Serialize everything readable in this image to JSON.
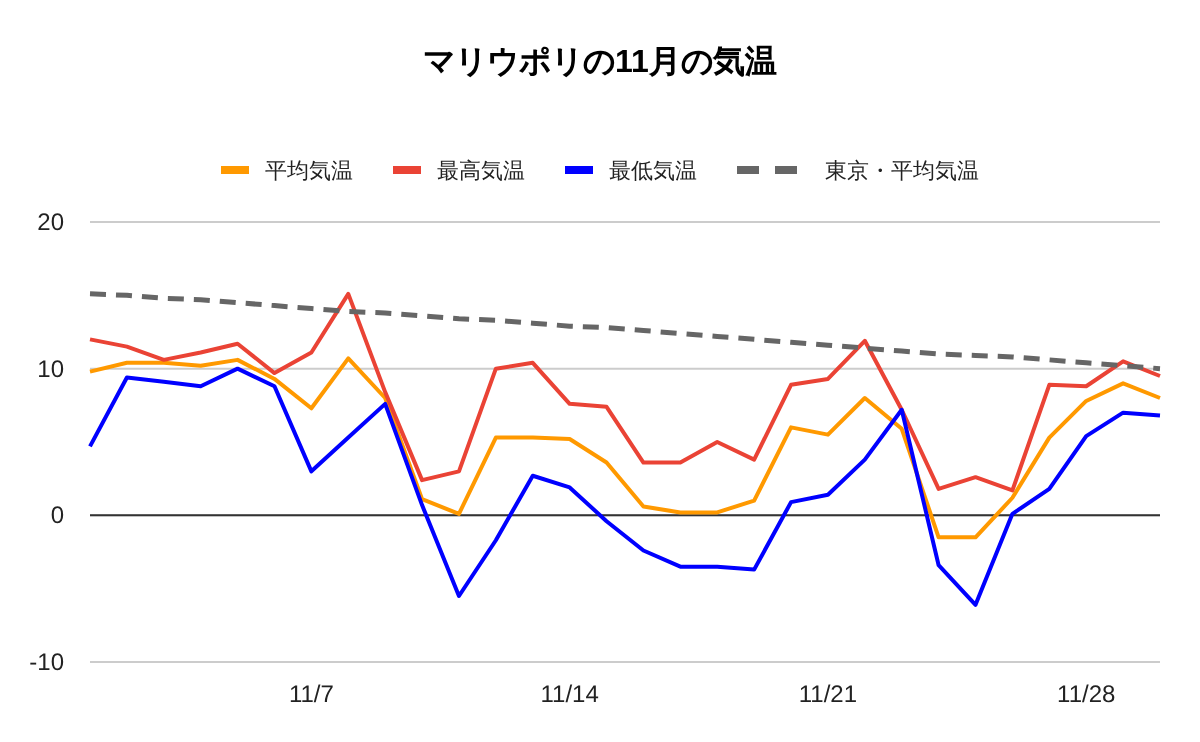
{
  "chart_data": {
    "type": "line",
    "title": "マリウポリの11月の気温",
    "categories": [
      null,
      null,
      null,
      null,
      null,
      null,
      "11/7",
      null,
      null,
      null,
      null,
      null,
      null,
      "11/14",
      null,
      null,
      null,
      null,
      null,
      null,
      "11/21",
      null,
      null,
      null,
      null,
      null,
      null,
      "11/28",
      null,
      null
    ],
    "series": [
      {
        "name": "平均気温",
        "color": "#ff9900",
        "values": [
          9.8,
          10.4,
          10.4,
          10.2,
          10.6,
          9.3,
          7.3,
          10.7,
          8.0,
          1.1,
          0.1,
          5.3,
          5.3,
          5.2,
          3.6,
          0.6,
          0.2,
          0.2,
          1.0,
          6.0,
          5.5,
          8.0,
          5.9,
          -1.5,
          -1.5,
          1.2,
          5.3,
          7.8,
          9.0,
          8.0
        ]
      },
      {
        "name": "最高気温",
        "color": "#ea4335",
        "values": [
          12.0,
          11.5,
          10.6,
          11.1,
          11.7,
          9.7,
          11.1,
          15.1,
          8.4,
          2.4,
          3.0,
          10.0,
          10.4,
          7.6,
          7.4,
          3.6,
          3.6,
          5.0,
          3.8,
          8.9,
          9.3,
          11.9,
          7.2,
          1.8,
          2.6,
          1.7,
          8.9,
          8.8,
          10.5,
          9.5
        ]
      },
      {
        "name": "最低気温",
        "color": "#0000ff",
        "values": [
          4.7,
          9.4,
          9.1,
          8.8,
          10.0,
          8.8,
          3.0,
          5.3,
          7.6,
          0.7,
          -5.5,
          -1.7,
          2.7,
          1.9,
          -0.4,
          -2.4,
          -3.5,
          -3.5,
          -3.7,
          0.9,
          1.4,
          3.8,
          7.2,
          -3.4,
          -6.1,
          0.1,
          1.8,
          5.4,
          7.0,
          6.8
        ]
      },
      {
        "name": "東京・平均気温",
        "color": "#666666",
        "line_style": "dashed",
        "values": [
          15.1,
          15.0,
          14.8,
          14.7,
          14.5,
          14.3,
          14.1,
          13.9,
          13.8,
          13.6,
          13.4,
          13.3,
          13.1,
          12.9,
          12.8,
          12.6,
          12.4,
          12.2,
          12.0,
          11.8,
          11.6,
          11.4,
          11.2,
          11.0,
          10.9,
          10.8,
          10.6,
          10.4,
          10.2,
          10.0
        ]
      }
    ],
    "ylim": [
      -10,
      20
    ],
    "yticks": [
      -10,
      0,
      10,
      20
    ],
    "grid": "y",
    "legend": "top",
    "marker": "none",
    "line_style": "solid"
  }
}
